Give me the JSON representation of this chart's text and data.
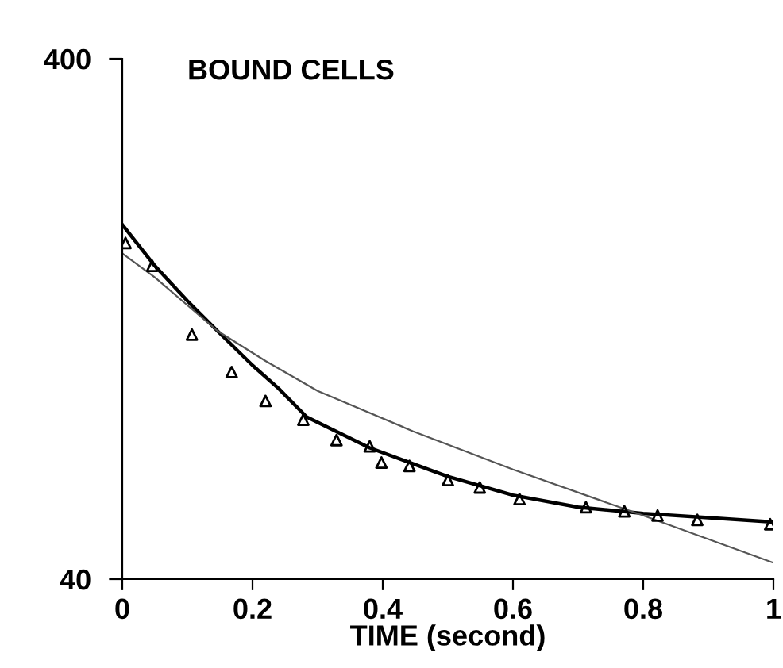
{
  "chart_data": {
    "type": "scatter",
    "title": "BOUND CELLS",
    "xlabel": "TIME (second)",
    "log": "y",
    "xlim": [
      0,
      1
    ],
    "ylim": [
      40,
      400
    ],
    "xticks": [
      0,
      0.2,
      0.4,
      0.6,
      0.8,
      1
    ],
    "yticks": [
      40,
      400
    ],
    "grid": false,
    "legend": false,
    "series": [
      {
        "color": "#000000",
        "marker": "triangle",
        "x": [
          0.005,
          0.046,
          0.107,
          0.168,
          0.22,
          0.278,
          0.329,
          0.38,
          0.398,
          0.441,
          0.5,
          0.549,
          0.61,
          0.712,
          0.771,
          0.822,
          0.883,
          0.995
        ],
        "values": [
          177,
          160,
          118,
          100,
          88,
          81,
          74,
          72,
          67,
          66,
          62,
          60,
          57,
          55,
          54,
          53,
          52,
          51
        ]
      },
      {
        "type": "line",
        "color": "#000000",
        "marker": "none",
        "line_style": "solid",
        "x": [
          0,
          0.05,
          0.1,
          0.146,
          0.2,
          0.24,
          0.283,
          0.38,
          0.5,
          0.6,
          0.7,
          0.8,
          0.9,
          1
        ],
        "values": [
          192,
          160,
          137,
          120,
          103,
          93,
          82,
          71.5,
          63,
          58,
          55,
          53.5,
          52.5,
          51.5
        ]
      },
      {
        "type": "line",
        "color": "#555555",
        "marker": "none",
        "line_style": "solid",
        "x": [
          0,
          0.05,
          0.146,
          0.22,
          0.3,
          0.446,
          0.6,
          0.8,
          1
        ],
        "values": [
          169,
          152,
          120,
          105,
          92,
          77,
          65,
          53,
          43
        ]
      }
    ]
  }
}
